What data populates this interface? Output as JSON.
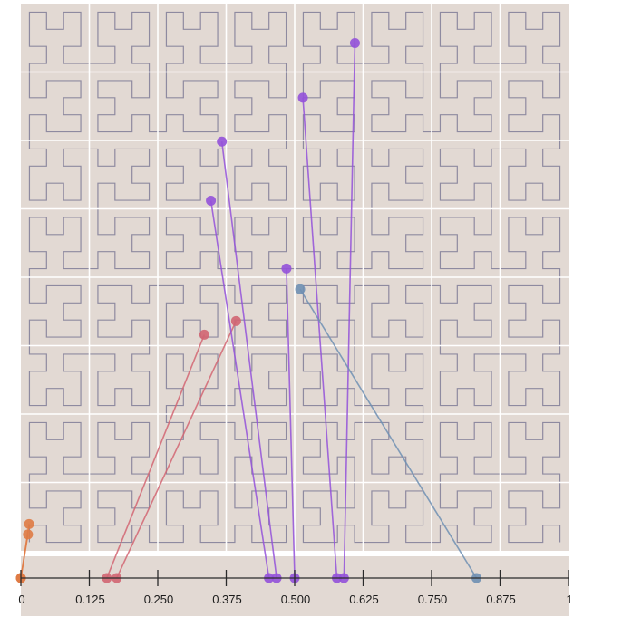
{
  "colors": {
    "panel": "#e2d9d3",
    "grid": "#ffffff",
    "curve": "#8e8aa0",
    "axis": "#2a2a2a",
    "orange": "#df7a44",
    "red": "#d26572",
    "purple": "#9351d9",
    "blue": "#6f8fb3"
  },
  "axis": {
    "tick_labels": [
      "0",
      "0.125",
      "0.250",
      "0.375",
      "0.500",
      "0.625",
      "0.750",
      "0.875",
      "1"
    ]
  },
  "chart_data": {
    "type": "scatter",
    "description_free": true,
    "xlim": [
      0,
      1
    ],
    "ylim": [
      0,
      1
    ],
    "grid_divisions": 8,
    "curve_order": 4,
    "links": [
      {
        "group": "orange",
        "t": 0.0,
        "px": 0.015,
        "py": 0.049
      },
      {
        "group": "orange",
        "t": 0.0,
        "px": 0.013,
        "py": 0.03
      },
      {
        "group": "red",
        "t": 0.157,
        "px": 0.335,
        "py": 0.395
      },
      {
        "group": "red",
        "t": 0.175,
        "px": 0.393,
        "py": 0.42
      },
      {
        "group": "purple",
        "t": 0.453,
        "px": 0.347,
        "py": 0.64
      },
      {
        "group": "purple",
        "t": 0.467,
        "px": 0.367,
        "py": 0.748
      },
      {
        "group": "purple",
        "t": 0.5,
        "px": 0.485,
        "py": 0.516
      },
      {
        "group": "purple",
        "t": 0.577,
        "px": 0.515,
        "py": 0.828
      },
      {
        "group": "purple",
        "t": 0.59,
        "px": 0.61,
        "py": 0.928
      },
      {
        "group": "blue",
        "t": 0.832,
        "px": 0.51,
        "py": 0.478
      }
    ]
  }
}
